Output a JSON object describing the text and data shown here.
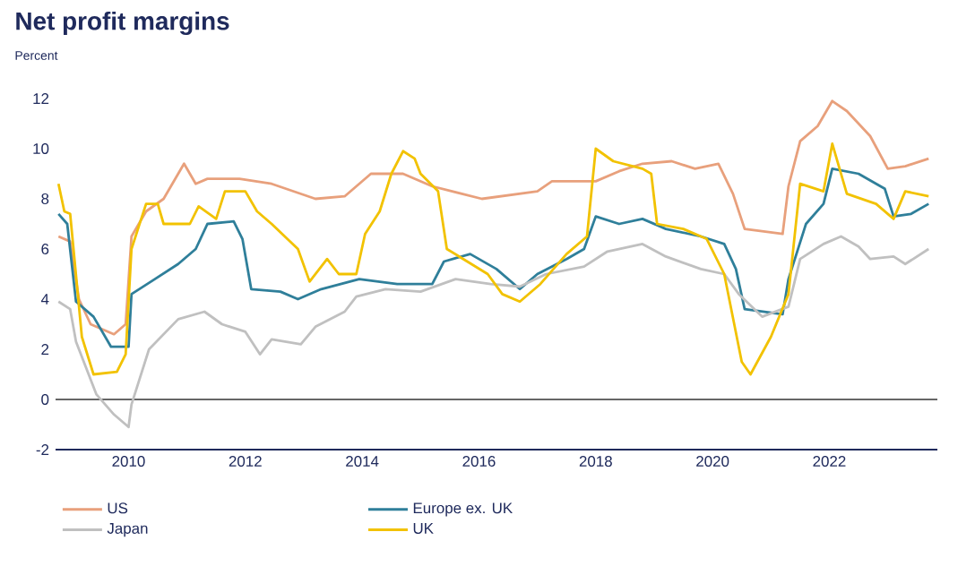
{
  "chart_data": {
    "type": "line",
    "title": "Net profit margins",
    "subtitle": "Percent",
    "xlim": [
      2008.75,
      2023.85
    ],
    "xticks": [
      2010,
      2012,
      2014,
      2016,
      2018,
      2020,
      2022
    ],
    "ylim": [
      -2,
      12
    ],
    "yticks": [
      -2,
      0,
      2,
      4,
      6,
      8,
      10,
      12
    ],
    "grid": false,
    "legend": "bottom",
    "marker": "none",
    "line_style": "solid",
    "ref_lines": [
      {
        "axis": "y",
        "value": 0,
        "color": "#333333"
      }
    ],
    "series": [
      {
        "name": "US",
        "color": "#e8a07c",
        "x": [
          2008.8,
          2009.0,
          2009.15,
          2009.35,
          2009.75,
          2009.95,
          2010.05,
          2010.3,
          2010.6,
          2010.95,
          2011.15,
          2011.35,
          2011.9,
          2012.45,
          2013.2,
          2013.7,
          2014.15,
          2014.7,
          2015.2,
          2016.05,
          2017.0,
          2017.25,
          2018.0,
          2018.4,
          2018.8,
          2019.3,
          2019.7,
          2020.1,
          2020.35,
          2020.55,
          2021.2,
          2021.3,
          2021.5,
          2021.8,
          2022.05,
          2022.3,
          2022.7,
          2023.0,
          2023.3,
          2023.7
        ],
        "values": [
          6.5,
          6.3,
          4.0,
          3.0,
          2.6,
          3.0,
          6.5,
          7.5,
          8.0,
          9.4,
          8.6,
          8.8,
          8.8,
          8.6,
          8.0,
          8.1,
          9.0,
          9.0,
          8.5,
          8.0,
          8.3,
          8.7,
          8.7,
          9.1,
          9.4,
          9.5,
          9.2,
          9.4,
          8.2,
          6.8,
          6.6,
          8.5,
          10.3,
          10.9,
          11.9,
          11.5,
          10.5,
          9.2,
          9.3,
          9.6
        ]
      },
      {
        "name": "Europe ex. UK",
        "color": "#2f7f9a",
        "x": [
          2008.8,
          2008.95,
          2009.1,
          2009.4,
          2009.7,
          2010.0,
          2010.05,
          2010.45,
          2010.85,
          2011.15,
          2011.35,
          2011.8,
          2011.95,
          2012.1,
          2012.6,
          2012.9,
          2013.3,
          2013.95,
          2014.6,
          2015.2,
          2015.4,
          2015.85,
          2016.3,
          2016.7,
          2017.0,
          2017.5,
          2017.8,
          2018.0,
          2018.4,
          2018.8,
          2019.2,
          2019.8,
          2020.2,
          2020.4,
          2020.55,
          2021.2,
          2021.3,
          2021.6,
          2021.9,
          2022.05,
          2022.5,
          2022.95,
          2023.1,
          2023.4,
          2023.7
        ],
        "values": [
          7.4,
          7.0,
          3.9,
          3.3,
          2.1,
          2.1,
          4.2,
          4.8,
          5.4,
          6.0,
          7.0,
          7.1,
          6.4,
          4.4,
          4.3,
          4.0,
          4.4,
          4.8,
          4.6,
          4.6,
          5.5,
          5.8,
          5.2,
          4.4,
          5.0,
          5.6,
          6.0,
          7.3,
          7.0,
          7.2,
          6.8,
          6.5,
          6.2,
          5.2,
          3.6,
          3.4,
          4.8,
          7.0,
          7.8,
          9.2,
          9.0,
          8.4,
          7.3,
          7.4,
          7.8
        ]
      },
      {
        "name": "Japan",
        "color": "#c0c0c0",
        "x": [
          2008.8,
          2009.0,
          2009.1,
          2009.45,
          2009.75,
          2010.0,
          2010.05,
          2010.35,
          2010.85,
          2011.3,
          2011.6,
          2012.0,
          2012.25,
          2012.45,
          2012.95,
          2013.2,
          2013.7,
          2013.9,
          2014.4,
          2015.0,
          2015.6,
          2016.2,
          2016.7,
          2017.15,
          2017.8,
          2018.2,
          2018.8,
          2019.2,
          2019.8,
          2020.2,
          2020.45,
          2020.85,
          2021.3,
          2021.5,
          2021.9,
          2022.2,
          2022.5,
          2022.7,
          2023.1,
          2023.3,
          2023.7
        ],
        "values": [
          3.9,
          3.6,
          2.3,
          0.2,
          -0.6,
          -1.1,
          -0.2,
          2.0,
          3.2,
          3.5,
          3.0,
          2.7,
          1.8,
          2.4,
          2.2,
          2.9,
          3.5,
          4.1,
          4.4,
          4.3,
          4.8,
          4.6,
          4.5,
          5.0,
          5.3,
          5.9,
          6.2,
          5.7,
          5.2,
          5.0,
          4.2,
          3.3,
          3.7,
          5.6,
          6.2,
          6.5,
          6.1,
          5.6,
          5.7,
          5.4,
          6.0
        ]
      },
      {
        "name": "UK",
        "color": "#f2c200",
        "x": [
          2008.8,
          2008.9,
          2009.0,
          2009.2,
          2009.4,
          2009.8,
          2009.95,
          2010.05,
          2010.3,
          2010.5,
          2010.6,
          2011.05,
          2011.2,
          2011.5,
          2011.65,
          2012.0,
          2012.2,
          2012.45,
          2012.9,
          2013.1,
          2013.4,
          2013.6,
          2013.9,
          2014.05,
          2014.3,
          2014.5,
          2014.7,
          2014.9,
          2015.0,
          2015.3,
          2015.45,
          2015.8,
          2016.15,
          2016.4,
          2016.7,
          2017.05,
          2017.5,
          2017.85,
          2018.0,
          2018.3,
          2018.8,
          2018.95,
          2019.05,
          2019.5,
          2019.9,
          2020.2,
          2020.5,
          2020.65,
          2021.0,
          2021.3,
          2021.5,
          2021.9,
          2022.05,
          2022.3,
          2022.8,
          2023.1,
          2023.3,
          2023.7
        ],
        "values": [
          8.6,
          7.5,
          7.4,
          2.5,
          1.0,
          1.1,
          1.8,
          6.0,
          7.8,
          7.8,
          7.0,
          7.0,
          7.7,
          7.2,
          8.3,
          8.3,
          7.5,
          7.0,
          6.0,
          4.7,
          5.6,
          5.0,
          5.0,
          6.6,
          7.5,
          9.0,
          9.9,
          9.6,
          9.0,
          8.3,
          6.0,
          5.5,
          5.0,
          4.2,
          3.9,
          4.6,
          5.8,
          6.5,
          10.0,
          9.5,
          9.2,
          9.0,
          7.0,
          6.8,
          6.4,
          5.0,
          1.5,
          1.0,
          2.5,
          4.2,
          8.6,
          8.3,
          10.2,
          8.2,
          7.8,
          7.2,
          8.3,
          8.1
        ]
      }
    ]
  }
}
